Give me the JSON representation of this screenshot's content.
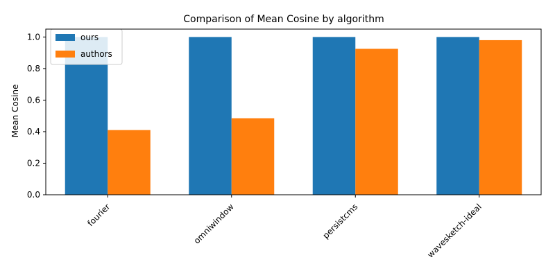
{
  "chart_data": {
    "type": "bar",
    "title": "Comparison of Mean Cosine by algorithm",
    "xlabel": "",
    "ylabel": "Mean Cosine",
    "categories": [
      "fourier",
      "omniwindow",
      "persistcms",
      "wavesketch-ideal"
    ],
    "series": [
      {
        "name": "ours",
        "color": "#1f77b4",
        "values": [
          1.0,
          1.0,
          1.0,
          1.0
        ]
      },
      {
        "name": "authors",
        "color": "#ff7f0e",
        "values": [
          0.41,
          0.485,
          0.925,
          0.98
        ]
      }
    ],
    "ylim": [
      0,
      1.05
    ],
    "yticks": [
      "0.0",
      "0.2",
      "0.4",
      "0.6",
      "0.8",
      "1.0"
    ],
    "grid": false,
    "legend_position": "top-left"
  }
}
